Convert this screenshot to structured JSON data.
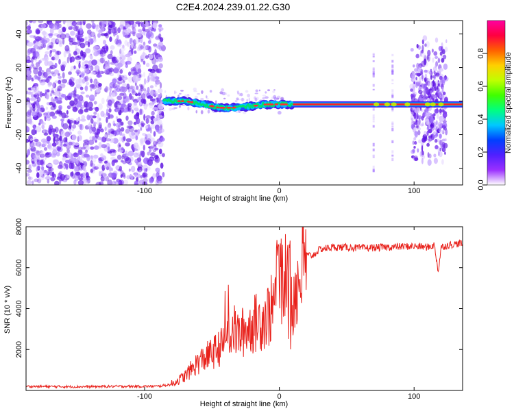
{
  "title": "C2E4.2024.239.01.22.G30",
  "colors": {
    "spectrum_low": "#7b2fe0",
    "spectrum_mid": "#00b0ff",
    "spectrum_peak": "#ff2020",
    "snr_line": "#e8201a"
  },
  "chart_data": [
    {
      "type": "heatmap",
      "title": "C2E4.2024.239.01.22.G30",
      "xlabel": "Height of straight line (km)",
      "ylabel": "Frequency (Hz)",
      "xlim": [
        -188,
        136
      ],
      "ylim": [
        -50,
        48
      ],
      "xticks": [
        -100,
        0,
        100
      ],
      "yticks": [
        -40,
        -20,
        0,
        20,
        40
      ],
      "colorbar": {
        "label": "Normalized spectral amplitude",
        "range": [
          0,
          1
        ],
        "ticks": [
          "0.0",
          "0.2",
          "0.4",
          "0.6",
          "0.8"
        ],
        "colors": [
          "#ffffff",
          "#9b30ff",
          "#5020ff",
          "#0040ff",
          "#00c8ff",
          "#00ff80",
          "#40ff00",
          "#c0ff00",
          "#ffd000",
          "#ff6000",
          "#ff0040",
          "#ff00a0"
        ]
      },
      "regions": [
        {
          "x": [
            -188,
            -86
          ],
          "description_level": 0.2,
          "freq_range": [
            -50,
            48
          ]
        },
        {
          "x": [
            -86,
            136
          ],
          "description_level": 0.9,
          "freq_range": [
            -2,
            2
          ]
        },
        {
          "x": [
            98,
            124
          ],
          "description_level": 0.3,
          "freq_range": [
            -40,
            40
          ]
        }
      ],
      "carrier_track": [
        {
          "x": -86,
          "y": 0
        },
        {
          "x": -70,
          "y": 0
        },
        {
          "x": -55,
          "y": -2
        },
        {
          "x": -45,
          "y": -4
        },
        {
          "x": -35,
          "y": -4
        },
        {
          "x": -20,
          "y": -3
        },
        {
          "x": -10,
          "y": -2
        },
        {
          "x": 0,
          "y": -2
        },
        {
          "x": 10,
          "y": -2
        },
        {
          "x": 40,
          "y": -2
        },
        {
          "x": 70,
          "y": -2
        },
        {
          "x": 100,
          "y": -2
        },
        {
          "x": 136,
          "y": -2
        }
      ]
    },
    {
      "type": "line",
      "xlabel": "Height of straight line (km)",
      "ylabel": "SNR (10 * v/v)",
      "xlim": [
        -188,
        136
      ],
      "ylim": [
        0,
        8000
      ],
      "xticks": [
        -100,
        0,
        100
      ],
      "yticks": [
        2000,
        4000,
        6000,
        8000
      ],
      "series": [
        {
          "x": [
            -188,
            -150,
            -120,
            -100,
            -90,
            -80,
            -70,
            -60,
            -50,
            -40,
            -35,
            -30,
            -20,
            -10,
            -5,
            0,
            5,
            10,
            15,
            20,
            25,
            30,
            40,
            50,
            60,
            80,
            100,
            110,
            115,
            118,
            120,
            125,
            136
          ],
          "y": [
            200,
            180,
            200,
            200,
            200,
            300,
            700,
            1400,
            1800,
            2300,
            3000,
            2700,
            3200,
            3600,
            4000,
            5500,
            6000,
            4500,
            5500,
            6600,
            6600,
            6900,
            7000,
            7000,
            6950,
            7000,
            7050,
            7000,
            7100,
            5800,
            7000,
            7100,
            7200
          ]
        }
      ]
    }
  ]
}
